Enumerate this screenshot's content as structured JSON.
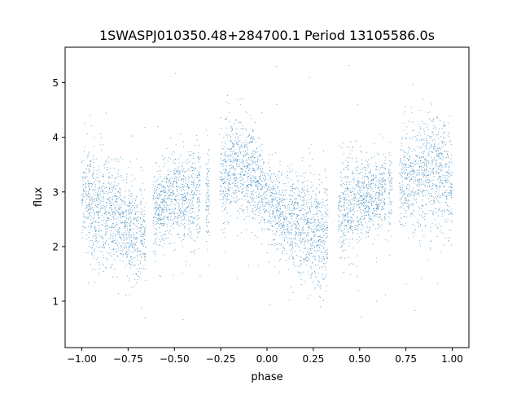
{
  "chart_data": {
    "type": "scatter",
    "title": "1SWASPJ010350.48+284700.1 Period 13105586.0s",
    "xlabel": "phase",
    "ylabel": "flux",
    "xlim": [
      -1.09,
      1.09
    ],
    "ylim": [
      0.15,
      5.65
    ],
    "grid": false,
    "legend": "none",
    "point_color": "#1f77b4",
    "x_ticks": [
      -1.0,
      -0.75,
      -0.5,
      -0.25,
      0.0,
      0.25,
      0.5,
      0.75,
      1.0
    ],
    "x_tick_labels": [
      "−1.00",
      "−0.75",
      "−0.50",
      "−0.25",
      "0.00",
      "0.25",
      "0.50",
      "0.75",
      "1.00"
    ],
    "y_ticks": [
      1,
      2,
      3,
      4,
      5
    ],
    "y_tick_labels": [
      "1",
      "2",
      "3",
      "4",
      "5"
    ],
    "series": [
      {
        "x": [
          -1.0,
          -0.95,
          -0.9,
          -0.85,
          -0.8,
          -0.75,
          -0.7,
          -0.65,
          -0.6,
          -0.55,
          -0.5,
          -0.45,
          -0.4,
          -0.35,
          -0.3,
          -0.25,
          -0.2,
          -0.15,
          -0.1,
          -0.05,
          0.0,
          0.05,
          0.1,
          0.15,
          0.2,
          0.25,
          0.3,
          0.35,
          0.4,
          0.45,
          0.5,
          0.55,
          0.6,
          0.65,
          0.7,
          0.75,
          0.8,
          0.85,
          0.9,
          0.95,
          1.0
        ],
        "y": [
          3.1,
          2.9,
          2.7,
          2.6,
          2.5,
          2.3,
          2.2,
          2.3,
          2.7,
          2.8,
          2.9,
          2.9,
          2.95,
          3.0,
          3.1,
          3.2,
          3.4,
          3.5,
          3.4,
          3.2,
          2.9,
          2.7,
          2.6,
          2.5,
          2.4,
          2.3,
          2.2,
          2.3,
          2.7,
          2.8,
          2.9,
          2.9,
          2.95,
          3.0,
          3.1,
          3.2,
          3.3,
          3.4,
          3.4,
          3.3,
          3.1
        ]
      }
    ]
  }
}
